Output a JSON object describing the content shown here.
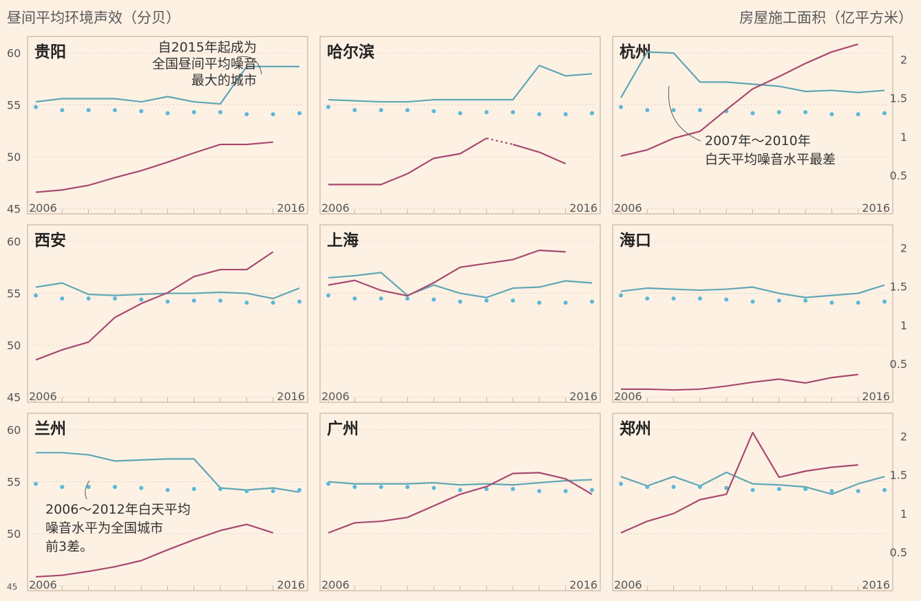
{
  "header": {
    "left_title": "昼间平均环境声效（分贝）",
    "right_title": "房屋施工面积（亿平方米）"
  },
  "colors": {
    "background": "#fdf1e4",
    "panel_border": "#c9b49e",
    "gridline": "#d7c9b8",
    "city_noise_line": "#5fa5b5",
    "national_avg_dots": "#5bb8d8",
    "construction_area_line": "#a8486e",
    "axis_text": "#555555",
    "annotation_text": "#333333"
  },
  "chart_data": [
    {
      "type": "line",
      "city": "贵阳",
      "x": [
        2006,
        2007,
        2008,
        2009,
        2010,
        2011,
        2012,
        2013,
        2014,
        2015,
        2016
      ],
      "series": [
        {
          "role": "city_noise",
          "axis": "left",
          "values": [
            55.3,
            55.6,
            55.6,
            55.6,
            55.3,
            55.8,
            55.3,
            55.1,
            58.7,
            58.7,
            58.7
          ]
        },
        {
          "role": "national_avg",
          "axis": "left",
          "style": "dots",
          "values": [
            54.8,
            54.5,
            54.5,
            54.5,
            54.4,
            54.2,
            54.3,
            54.3,
            54.1,
            54.1,
            54.2
          ]
        },
        {
          "role": "construction_area",
          "axis": "right",
          "values": [
            0.28,
            0.31,
            0.37,
            0.47,
            0.56,
            0.67,
            0.79,
            0.9,
            0.9,
            0.93,
            null
          ]
        }
      ],
      "x_tick_labels": [
        "2006",
        "2016"
      ],
      "left_ticks": [
        45,
        50,
        55,
        60
      ],
      "ylim_left": [
        45,
        62
      ],
      "annotation": "自2015年起成为\n全国昼间平均噪音\n最大的城市"
    },
    {
      "type": "line",
      "city": "哈尔滨",
      "x": [
        2006,
        2007,
        2008,
        2009,
        2010,
        2011,
        2012,
        2013,
        2014,
        2015,
        2016
      ],
      "series": [
        {
          "role": "city_noise",
          "axis": "left",
          "values": [
            55.5,
            55.4,
            55.3,
            55.3,
            55.5,
            55.5,
            55.5,
            55.5,
            58.8,
            57.8,
            58.0
          ]
        },
        {
          "role": "national_avg",
          "axis": "left",
          "style": "dots",
          "values": [
            54.8,
            54.5,
            54.5,
            54.5,
            54.4,
            54.2,
            54.3,
            54.3,
            54.1,
            54.1,
            54.2
          ]
        },
        {
          "role": "construction_area",
          "axis": "right",
          "values": [
            0.38,
            0.38,
            0.38,
            0.52,
            0.72,
            0.78,
            0.98,
            0.9,
            0.8,
            0.65,
            null
          ],
          "dashed_segment": [
            2012,
            2013
          ]
        }
      ],
      "x_tick_labels": [
        "2006",
        "2016"
      ]
    },
    {
      "type": "line",
      "city": "杭州",
      "x": [
        2006,
        2007,
        2008,
        2009,
        2010,
        2011,
        2012,
        2013,
        2014,
        2015,
        2016
      ],
      "series": [
        {
          "role": "city_noise",
          "axis": "left",
          "values": [
            55.7,
            60.1,
            60.0,
            57.2,
            57.2,
            57.0,
            56.8,
            56.3,
            56.4,
            56.2,
            56.4
          ]
        },
        {
          "role": "national_avg",
          "axis": "left",
          "style": "dots",
          "values": [
            54.8,
            54.5,
            54.5,
            54.5,
            54.4,
            54.2,
            54.3,
            54.3,
            54.1,
            54.1,
            54.2
          ]
        },
        {
          "role": "construction_area",
          "axis": "right",
          "values": [
            0.75,
            0.83,
            0.98,
            1.07,
            1.35,
            1.62,
            1.78,
            1.95,
            2.1,
            2.2,
            null
          ]
        }
      ],
      "x_tick_labels": [
        "2006",
        "2016"
      ],
      "right_ticks": [
        0.5,
        1,
        1.5,
        2
      ],
      "ylim_right": [
        0,
        2.3
      ],
      "annotation": "2007年～2010年\n白天平均噪音水平最差"
    },
    {
      "type": "line",
      "city": "西安",
      "x": [
        2006,
        2007,
        2008,
        2009,
        2010,
        2011,
        2012,
        2013,
        2014,
        2015,
        2016
      ],
      "series": [
        {
          "role": "city_noise",
          "axis": "left",
          "values": [
            55.6,
            56.0,
            54.9,
            54.8,
            54.9,
            55.0,
            55.0,
            55.1,
            55.0,
            54.5,
            55.5
          ]
        },
        {
          "role": "national_avg",
          "axis": "left",
          "style": "dots",
          "values": [
            54.8,
            54.5,
            54.5,
            54.5,
            54.4,
            54.2,
            54.3,
            54.3,
            54.1,
            54.1,
            54.2
          ]
        },
        {
          "role": "construction_area",
          "axis": "right",
          "values": [
            0.55,
            0.68,
            0.78,
            1.1,
            1.28,
            1.42,
            1.63,
            1.72,
            1.72,
            1.95,
            null
          ]
        }
      ],
      "x_tick_labels": [
        "2006",
        "2016"
      ],
      "left_ticks": [
        45,
        50,
        55,
        60
      ],
      "ylim_left": [
        45,
        62
      ]
    },
    {
      "type": "line",
      "city": "上海",
      "x": [
        2006,
        2007,
        2008,
        2009,
        2010,
        2011,
        2012,
        2013,
        2014,
        2015,
        2016
      ],
      "series": [
        {
          "role": "city_noise",
          "axis": "left",
          "values": [
            56.5,
            56.7,
            57.0,
            54.8,
            55.8,
            55.0,
            54.6,
            55.5,
            55.6,
            56.2,
            56.0
          ]
        },
        {
          "role": "national_avg",
          "axis": "left",
          "style": "dots",
          "values": [
            54.8,
            54.5,
            54.5,
            54.5,
            54.4,
            54.2,
            54.3,
            54.3,
            54.1,
            54.1,
            54.2
          ]
        },
        {
          "role": "construction_area",
          "axis": "right",
          "values": [
            1.52,
            1.58,
            1.45,
            1.38,
            1.55,
            1.75,
            1.8,
            1.85,
            1.97,
            1.95,
            null
          ]
        }
      ],
      "x_tick_labels": [
        "2006",
        "2016"
      ]
    },
    {
      "type": "line",
      "city": "海口",
      "x": [
        2006,
        2007,
        2008,
        2009,
        2010,
        2011,
        2012,
        2013,
        2014,
        2015,
        2016
      ],
      "series": [
        {
          "role": "city_noise",
          "axis": "left",
          "values": [
            55.2,
            55.5,
            55.4,
            55.3,
            55.4,
            55.6,
            55.0,
            54.6,
            54.8,
            55.0,
            55.8
          ]
        },
        {
          "role": "national_avg",
          "axis": "left",
          "style": "dots",
          "values": [
            54.8,
            54.5,
            54.5,
            54.5,
            54.4,
            54.2,
            54.3,
            54.3,
            54.1,
            54.1,
            54.2
          ]
        },
        {
          "role": "construction_area",
          "axis": "right",
          "values": [
            0.17,
            0.17,
            0.16,
            0.17,
            0.21,
            0.26,
            0.3,
            0.25,
            0.32,
            0.36,
            null
          ]
        }
      ],
      "x_tick_labels": [
        "2006",
        "2016"
      ],
      "right_ticks": [
        0.5,
        1,
        1.5,
        2
      ],
      "ylim_right": [
        0,
        2.3
      ]
    },
    {
      "type": "line",
      "city": "兰州",
      "x": [
        2006,
        2007,
        2008,
        2009,
        2010,
        2011,
        2012,
        2013,
        2014,
        2015,
        2016
      ],
      "series": [
        {
          "role": "city_noise",
          "axis": "left",
          "values": [
            57.8,
            57.8,
            57.6,
            57.0,
            57.1,
            57.2,
            57.2,
            54.4,
            54.2,
            54.4,
            54.0
          ]
        },
        {
          "role": "national_avg",
          "axis": "left",
          "style": "dots",
          "values": [
            54.8,
            54.5,
            54.5,
            54.5,
            54.4,
            54.2,
            54.3,
            54.3,
            54.1,
            54.1,
            54.2
          ]
        },
        {
          "role": "construction_area",
          "axis": "right",
          "values": [
            0.18,
            0.2,
            0.25,
            0.31,
            0.39,
            0.53,
            0.66,
            0.78,
            0.86,
            0.75,
            null
          ]
        }
      ],
      "x_tick_labels": [
        "2006",
        "2016"
      ],
      "left_ticks": [
        45,
        50,
        55,
        60
      ],
      "ylim_left": [
        45,
        62
      ],
      "annotation": "2006～2012年白天平均\n噪音水平为全国城市\n前3差。"
    },
    {
      "type": "line",
      "city": "广州",
      "x": [
        2006,
        2007,
        2008,
        2009,
        2010,
        2011,
        2012,
        2013,
        2014,
        2015,
        2016
      ],
      "series": [
        {
          "role": "city_noise",
          "axis": "left",
          "values": [
            55.0,
            54.8,
            54.8,
            54.8,
            54.9,
            54.7,
            54.8,
            54.7,
            54.9,
            55.1,
            55.2
          ]
        },
        {
          "role": "national_avg",
          "axis": "left",
          "style": "dots",
          "values": [
            54.8,
            54.5,
            54.5,
            54.5,
            54.4,
            54.2,
            54.3,
            54.3,
            54.1,
            54.1,
            54.2
          ]
        },
        {
          "role": "construction_area",
          "axis": "right",
          "values": [
            0.75,
            0.88,
            0.9,
            0.95,
            1.1,
            1.25,
            1.35,
            1.52,
            1.53,
            1.45,
            1.25
          ]
        }
      ],
      "x_tick_labels": [
        "2006",
        "2016"
      ]
    },
    {
      "type": "line",
      "city": "郑州",
      "x": [
        2006,
        2007,
        2008,
        2009,
        2010,
        2011,
        2012,
        2013,
        2014,
        2015,
        2016
      ],
      "series": [
        {
          "role": "city_noise",
          "axis": "left",
          "values": [
            55.5,
            54.6,
            55.5,
            54.6,
            55.9,
            54.8,
            54.7,
            54.5,
            53.8,
            54.8,
            55.5
          ]
        },
        {
          "role": "national_avg",
          "axis": "left",
          "style": "dots",
          "values": [
            54.8,
            54.5,
            54.5,
            54.5,
            54.4,
            54.2,
            54.3,
            54.3,
            54.1,
            54.1,
            54.2
          ]
        },
        {
          "role": "construction_area",
          "axis": "right",
          "values": [
            0.75,
            0.9,
            1.0,
            1.18,
            1.25,
            2.05,
            1.47,
            1.55,
            1.6,
            1.63,
            null
          ]
        }
      ],
      "x_tick_labels": [
        "2006",
        "2016"
      ],
      "right_ticks": [
        0.5,
        1,
        1.5,
        2
      ],
      "ylim_right": [
        0,
        2.3
      ]
    }
  ]
}
